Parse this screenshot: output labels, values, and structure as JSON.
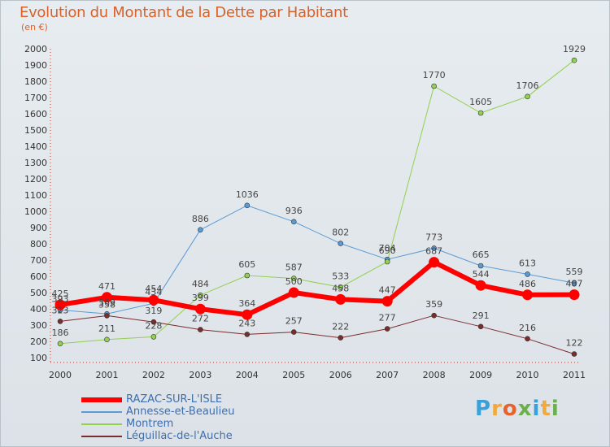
{
  "title": "Evolution du Montant de la Dette par Habitant",
  "subtitle": "(en €)",
  "logo": {
    "text": "Proxiti",
    "letters": [
      "P",
      "r",
      "o",
      "x",
      "i",
      "t",
      "i"
    ],
    "colors": [
      "#3aa0d8",
      "#f2a93b",
      "#e8632a",
      "#6ab04c",
      "#3aa0d8",
      "#f2a93b",
      "#6ab04c"
    ]
  },
  "chart_data": {
    "type": "line",
    "title": "Evolution du Montant de la Dette par Habitant",
    "ylabel": "(en €)",
    "xlabel": "",
    "x": [
      "2000",
      "2001",
      "2002",
      "2003",
      "2004",
      "2005",
      "2006",
      "2007",
      "2008",
      "2009",
      "2010",
      "2011"
    ],
    "ylim": [
      100,
      2000
    ],
    "yticks": [
      100,
      200,
      300,
      400,
      500,
      600,
      700,
      800,
      900,
      1000,
      1100,
      1200,
      1300,
      1400,
      1500,
      1600,
      1700,
      1800,
      1900,
      2000
    ],
    "grid": false,
    "legend_position": "bottom-left",
    "series": [
      {
        "name": "RAZAC-SUR-L'ISLE",
        "color": "#ff0000",
        "width": 6,
        "values": [
          425,
          471,
          454,
          399,
          364,
          500,
          458,
          447,
          687,
          544,
          486,
          487
        ]
      },
      {
        "name": "Annesse-et-Beaulieu",
        "color": "#5b9bd5",
        "width": 1,
        "values": [
          393,
          369,
          434,
          886,
          1036,
          936,
          802,
          704,
          773,
          665,
          613,
          559
        ]
      },
      {
        "name": "Montrem",
        "color": "#92d050",
        "width": 1,
        "values": [
          186,
          211,
          228,
          484,
          605,
          587,
          533,
          690,
          1770,
          1605,
          1706,
          1929
        ]
      },
      {
        "name": "Léguillac-de-l'Auche",
        "color": "#7b2c2c",
        "width": 1,
        "values": [
          323,
          358,
          319,
          272,
          243,
          257,
          222,
          277,
          359,
          291,
          216,
          122
        ]
      }
    ]
  }
}
